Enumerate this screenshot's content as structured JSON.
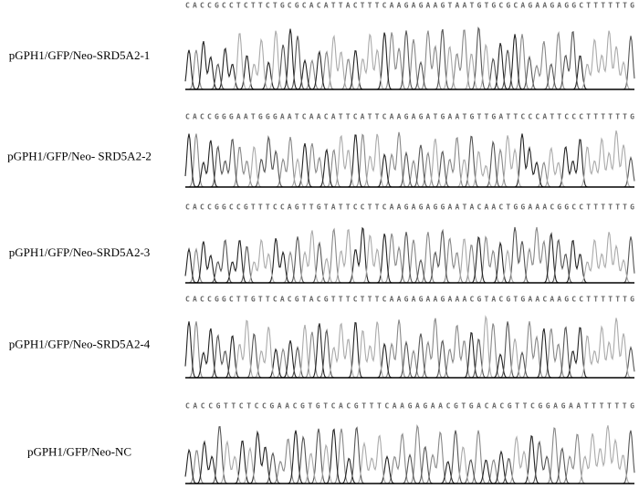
{
  "panels": [
    {
      "label": "pGPH1/GFP/Neo-SRD5A2-1",
      "sequence": "CACCGCCTCTTCTGCGCACATTACTTTCAAGAGAAGTAATGTGCGCAGAAGAGGCTTTTTTG"
    },
    {
      "label": "pGPH1/GFP/Neo- SRD5A2-2",
      "sequence": "CACCGGGAATGGGAATCAACATTCATTCAAGAGATGAATGTTGATTCCCATTCCCTTTTTTG"
    },
    {
      "label": "pGPH1/GFP/Neo-SRD5A2-3",
      "sequence": "CACCGGCCGTTTCCAGTTGTATTCCTTCAAGAGAGGAATACAACTGGAAACGGCCTTTTTTG"
    },
    {
      "label": "pGPH1/GFP/Neo-SRD5A2-4",
      "sequence": "CACCGGCTTGTTCACGTACGTTTCTTTCAAGAGAAGAAACGTACGTGAACAAGCCTTTTTTG"
    },
    {
      "label": "pGPH1/GFP/Neo-NC",
      "sequence": "CACCGTTCTCCGAACGTGTCACGTTTCAAGAGAACGTGACACGTTCGGAGAATTTTTTG"
    }
  ]
}
